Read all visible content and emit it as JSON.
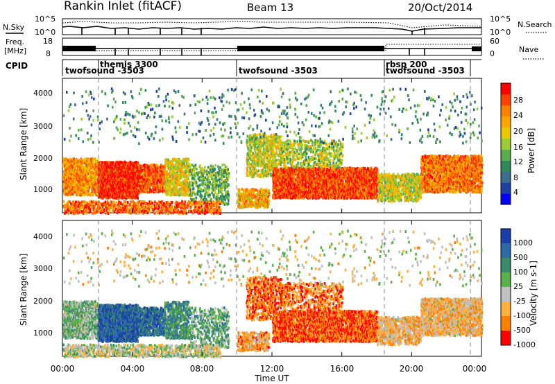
{
  "header": {
    "station": "Rankin Inlet (fitACF)",
    "beam": "Beam 13",
    "date": "20/Oct/2014"
  },
  "sidebar_labels": {
    "nsky": "N.Sky",
    "freq_line1": "Freq.",
    "freq_line2": "[MHz]",
    "cpid": "CPID",
    "nsearch": "N.Search",
    "nave": "Nave"
  },
  "chart_data": [
    {
      "type": "line",
      "name": "noise",
      "ylabel_left": "N.Sky",
      "ylabel_right": "N.Search",
      "left_ticks": [
        "10^5",
        "10^0"
      ],
      "right_ticks": [
        "10^5",
        "10^0"
      ],
      "xlim_hours": [
        0,
        24
      ]
    },
    {
      "type": "line",
      "name": "frequency",
      "ylabel_left": "Freq. [MHz]",
      "ylabel_right": "Nave",
      "left_ticks": [
        "18",
        "8"
      ],
      "right_ticks": [
        "60",
        "0"
      ],
      "xlim_hours": [
        0,
        24
      ]
    },
    {
      "type": "table",
      "name": "cpid",
      "ylabel": "CPID",
      "segments": [
        {
          "label": "twofsound -3503",
          "start": 0,
          "end": 2.0
        },
        {
          "label": "themis 3300",
          "start": 2.0,
          "end": 10.0
        },
        {
          "label": "twofsound -3503",
          "start": 10.0,
          "end": 18.5
        },
        {
          "label": "rbsp 200",
          "start": 18.5,
          "end": 19.0
        },
        {
          "label": "twofsound -3503",
          "start": 19.0,
          "end": 24.0
        }
      ]
    },
    {
      "type": "heatmap",
      "name": "power",
      "ylabel": "Slant Range [km]",
      "yticks": [
        "4000",
        "3000",
        "2000",
        "1000"
      ],
      "ylim": [
        180,
        4600
      ],
      "xlim_hours": [
        0,
        24
      ],
      "colorbar": {
        "label": "Power [dB]",
        "ticks": [
          "28",
          "24",
          "20",
          "16",
          "12",
          "8",
          "4"
        ],
        "colors": [
          "#0000ff",
          "#2040a0",
          "#3a6e8a",
          "#2e8b57",
          "#5aab4e",
          "#9acd32",
          "#e8c800",
          "#ffa500",
          "#ff7f00",
          "#ff4000",
          "#ff0000"
        ]
      }
    },
    {
      "type": "heatmap",
      "name": "velocity",
      "ylabel": "Slant Range [km]",
      "yticks": [
        "4000",
        "3000",
        "2000",
        "1000"
      ],
      "ylim": [
        180,
        4600
      ],
      "xlim_hours": [
        0,
        24
      ],
      "colorbar": {
        "label": "Velocity [m s-1]",
        "ticks": [
          "1000",
          "500",
          "100",
          "25",
          "-25",
          "-100",
          "-500",
          "-1000"
        ],
        "colors": [
          "#1a3ea8",
          "#2e6aa8",
          "#3a8a6a",
          "#5ab04a",
          "#c0c0c0",
          "#ffb040",
          "#ff8000",
          "#ff0000"
        ]
      }
    }
  ],
  "xaxis": {
    "ticks": [
      "00:00",
      "04:00",
      "08:00",
      "12:00",
      "16:00",
      "20:00",
      "00:00"
    ],
    "label": "Time UT"
  }
}
